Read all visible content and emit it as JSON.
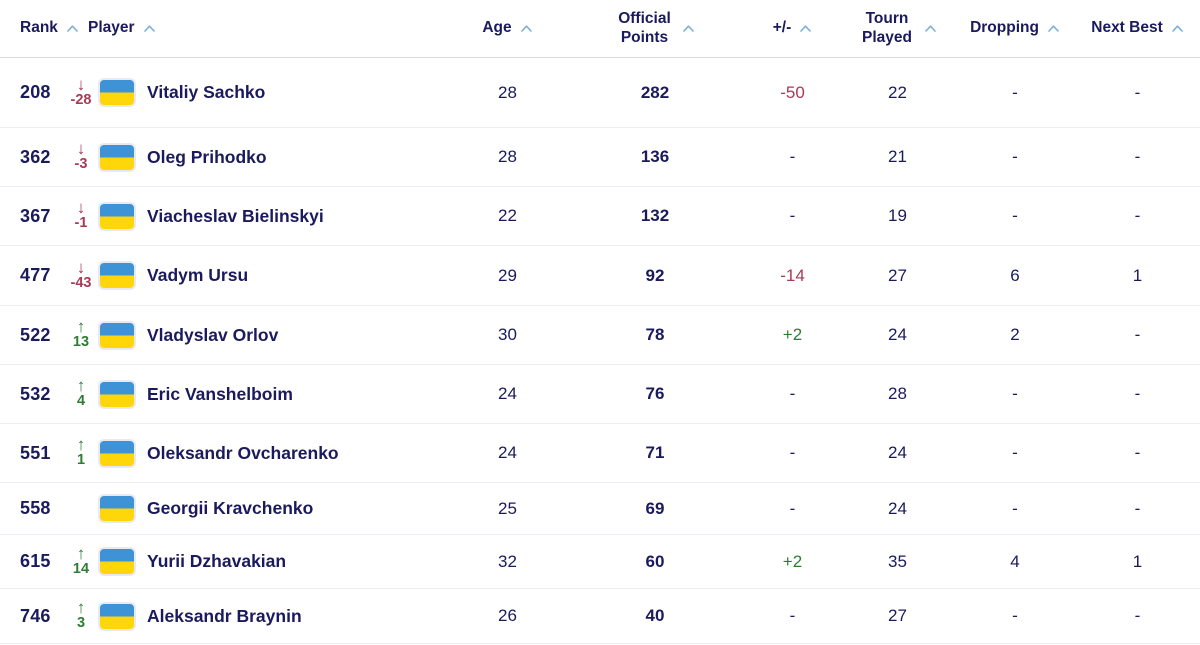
{
  "colors": {
    "text_navy": "#1a1a5c",
    "negative_red": "#a83a56",
    "positive_green": "#2e7d32",
    "sort_caret_blue": "#7cb0d6",
    "flag_blue": "#3d93d6",
    "flag_yellow": "#ffd60a",
    "row_divider": "#ededf3",
    "header_divider": "#d9dae3"
  },
  "table": {
    "columns": [
      {
        "key": "rank",
        "label": "Rank"
      },
      {
        "key": "player",
        "label": "Player"
      },
      {
        "key": "age",
        "label": "Age"
      },
      {
        "key": "points",
        "label": "Official Points"
      },
      {
        "key": "plusminus",
        "label": "+/-"
      },
      {
        "key": "tourn",
        "label": "Tourn Played"
      },
      {
        "key": "dropping",
        "label": "Dropping"
      },
      {
        "key": "nextbest",
        "label": "Next Best"
      }
    ],
    "rows": [
      {
        "rank": "208",
        "movement": {
          "direction": "down",
          "value": "-28"
        },
        "flag": "ukraine",
        "player": "Vitaliy Sachko",
        "age": "28",
        "points": "282",
        "plusminus": "-50",
        "tourn": "22",
        "dropping": "-",
        "nextbest": "-"
      },
      {
        "rank": "362",
        "movement": {
          "direction": "down",
          "value": "-3"
        },
        "flag": "ukraine",
        "player": "Oleg Prihodko",
        "age": "28",
        "points": "136",
        "plusminus": "-",
        "tourn": "21",
        "dropping": "-",
        "nextbest": "-"
      },
      {
        "rank": "367",
        "movement": {
          "direction": "down",
          "value": "-1"
        },
        "flag": "ukraine",
        "player": "Viacheslav Bielinskyi",
        "age": "22",
        "points": "132",
        "plusminus": "-",
        "tourn": "19",
        "dropping": "-",
        "nextbest": "-"
      },
      {
        "rank": "477",
        "movement": {
          "direction": "down",
          "value": "-43"
        },
        "flag": "ukraine",
        "player": "Vadym Ursu",
        "age": "29",
        "points": "92",
        "plusminus": "-14",
        "tourn": "27",
        "dropping": "6",
        "nextbest": "1"
      },
      {
        "rank": "522",
        "movement": {
          "direction": "up",
          "value": "13"
        },
        "flag": "ukraine",
        "player": "Vladyslav Orlov",
        "age": "30",
        "points": "78",
        "plusminus": "+2",
        "tourn": "24",
        "dropping": "2",
        "nextbest": "-"
      },
      {
        "rank": "532",
        "movement": {
          "direction": "up",
          "value": "4"
        },
        "flag": "ukraine",
        "player": "Eric Vanshelboim",
        "age": "24",
        "points": "76",
        "plusminus": "-",
        "tourn": "28",
        "dropping": "-",
        "nextbest": "-"
      },
      {
        "rank": "551",
        "movement": {
          "direction": "up",
          "value": "1"
        },
        "flag": "ukraine",
        "player": "Oleksandr Ovcharenko",
        "age": "24",
        "points": "71",
        "plusminus": "-",
        "tourn": "24",
        "dropping": "-",
        "nextbest": "-"
      },
      {
        "rank": "558",
        "movement": null,
        "flag": "ukraine",
        "player": "Georgii Kravchenko",
        "age": "25",
        "points": "69",
        "plusminus": "-",
        "tourn": "24",
        "dropping": "-",
        "nextbest": "-"
      },
      {
        "rank": "615",
        "movement": {
          "direction": "up",
          "value": "14"
        },
        "flag": "ukraine",
        "player": "Yurii Dzhavakian",
        "age": "32",
        "points": "60",
        "plusminus": "+2",
        "tourn": "35",
        "dropping": "4",
        "nextbest": "1"
      },
      {
        "rank": "746",
        "movement": {
          "direction": "up",
          "value": "3"
        },
        "flag": "ukraine",
        "player": "Aleksandr Braynin",
        "age": "26",
        "points": "40",
        "plusminus": "-",
        "tourn": "27",
        "dropping": "-",
        "nextbest": "-"
      }
    ],
    "icons": {
      "sort_caret": "chevron-up",
      "movement_up": "↑",
      "movement_down": "↓"
    }
  }
}
